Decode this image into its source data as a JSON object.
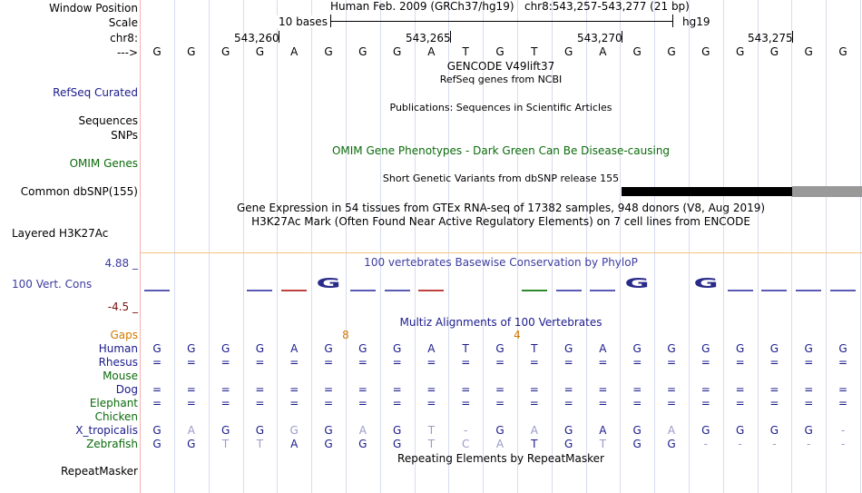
{
  "header": {
    "genome": "Human Feb. 2009 (GRCh37/hg19)",
    "position": "chr8:543,257-543,277 (21 bp)",
    "scale_text": "10 bases",
    "assembly": "hg19",
    "coords": [
      "543,260",
      "543,265",
      "543,270",
      "543,275"
    ],
    "strand_arrow": "--->"
  },
  "labels": {
    "window_position": "Window Position",
    "scale": "Scale",
    "chr": "chr8:",
    "refseq": "RefSeq Curated",
    "sequences": "Sequences",
    "snps": "SNPs",
    "omim": "OMIM Genes",
    "dbsnp": "Common dbSNP(155)",
    "h3k27ac": "Layered H3K27Ac",
    "cons_max": "4.88 _",
    "cons_label": "100 Vert. Cons",
    "cons_min": "-4.5 _"
  },
  "tracks": {
    "gencode": "GENCODE V49lift37",
    "refseq_title": "RefSeq genes from NCBI",
    "publications": "Publications: Sequences in Scientific Articles",
    "omim_title": "OMIM Gene Phenotypes - Dark Green Can Be Disease-causing",
    "dbsnp_title": "Short Genetic Variants from dbSNP release 155",
    "gtex": "Gene Expression in 54 tissues from GTEx RNA-seq of 17382 samples, 948 donors (V8, Aug 2019)",
    "h3k27ac_title": "H3K27Ac Mark (Often Found Near Active Regulatory Elements) on 7 cell lines from ENCODE",
    "phylop": "100 vertebrates Basewise Conservation by PhyloP",
    "multiz": "Multiz Alignments of 100 Vertebrates",
    "repeatmasker": "Repeating Elements by RepeatMasker"
  },
  "bases": [
    "G",
    "G",
    "G",
    "G",
    "A",
    "G",
    "G",
    "G",
    "A",
    "T",
    "G",
    "T",
    "G",
    "A",
    "G",
    "G",
    "G",
    "G",
    "G",
    "G",
    "G"
  ],
  "phylop_logo": [
    {
      "col": 5,
      "letter": "G",
      "color": "#2a2a8a"
    },
    {
      "col": 14,
      "letter": "G",
      "color": "#2a2a8a"
    },
    {
      "col": 16,
      "letter": "G",
      "color": "#2a2a8a"
    }
  ],
  "alignment": {
    "gaps_label": "Gaps",
    "gap_counts": [
      {
        "col": 5.5,
        "value": "8"
      },
      {
        "col": 10.5,
        "value": "4"
      }
    ],
    "species": [
      {
        "name": "Human",
        "color": "#1a1a8c",
        "seq": [
          "G",
          "G",
          "G",
          "G",
          "A",
          "G",
          "G",
          "G",
          "A",
          "T",
          "G",
          "T",
          "G",
          "A",
          "G",
          "G",
          "G",
          "G",
          "G",
          "G",
          "G"
        ]
      },
      {
        "name": "Rhesus",
        "color": "#1a1a8c",
        "seq": [
          "=",
          "=",
          "=",
          "=",
          "=",
          "=",
          "=",
          "=",
          "=",
          "=",
          "=",
          "=",
          "=",
          "=",
          "=",
          "=",
          "=",
          "=",
          "=",
          "=",
          "="
        ]
      },
      {
        "name": "Mouse",
        "color": "#0b6b0b",
        "seq": []
      },
      {
        "name": "Dog",
        "color": "#1a1a8c",
        "seq": [
          "=",
          "=",
          "=",
          "=",
          "=",
          "=",
          "=",
          "=",
          "=",
          "=",
          "=",
          "=",
          "=",
          "=",
          "=",
          "=",
          "=",
          "=",
          "=",
          "=",
          "="
        ]
      },
      {
        "name": "Elephant",
        "color": "#0b6b0b",
        "seq": [
          "=",
          "=",
          "=",
          "=",
          "=",
          "=",
          "=",
          "=",
          "=",
          "=",
          "=",
          "=",
          "=",
          "=",
          "=",
          "=",
          "=",
          "=",
          "=",
          "=",
          "="
        ]
      },
      {
        "name": "Chicken",
        "color": "#0b6b0b",
        "seq": []
      },
      {
        "name": "X_tropicalis",
        "color": "#1a1a8c",
        "seq": [
          "G",
          "A",
          "G",
          "G",
          "G",
          "G",
          "A",
          "G",
          "T",
          "-",
          "G",
          "A",
          "G",
          "A",
          "G",
          "A",
          "G",
          "G",
          "G",
          "G",
          "-"
        ]
      },
      {
        "name": "Zebrafish",
        "color": "#0b6b0b",
        "seq": [
          "G",
          "G",
          "T",
          "T",
          "A",
          "G",
          "G",
          "G",
          "T",
          "C",
          "A",
          "T",
          "G",
          "T",
          "G",
          "G",
          "-",
          "-",
          "-",
          "-",
          "-"
        ]
      }
    ]
  }
}
